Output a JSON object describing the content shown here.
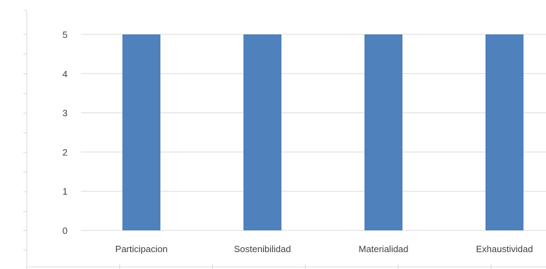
{
  "chart_data": {
    "type": "bar",
    "categories": [
      "Participacion",
      "Sostenibilidad",
      "Materialidad",
      "Exhaustividad"
    ],
    "values": [
      5,
      5,
      5,
      5
    ],
    "title": "",
    "xlabel": "",
    "ylabel": "",
    "ylim": [
      0,
      5
    ],
    "yticks": [
      0,
      1,
      2,
      3,
      4,
      5
    ],
    "grid": true,
    "legend": "none",
    "bar_color": "#4f81bd"
  }
}
